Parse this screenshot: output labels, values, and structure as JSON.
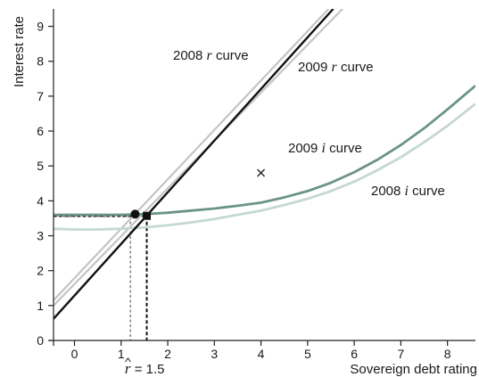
{
  "chart_data": {
    "type": "line",
    "xlabel": "Sovereign debt rating",
    "ylabel": "Interest rate",
    "xlim": [
      -0.45,
      8.6
    ],
    "ylim": [
      0,
      9.5
    ],
    "x_ticks": [
      0,
      1,
      2,
      3,
      4,
      5,
      6,
      7,
      8
    ],
    "y_ticks": [
      0,
      1,
      2,
      3,
      4,
      5,
      6,
      7,
      8,
      9
    ],
    "grid": false,
    "series": [
      {
        "name": "2008 r curve",
        "label_prefix": "2008 ",
        "label_symbol": "r",
        "label_suffix": " curve",
        "color": "#c4c4c4",
        "kind": "line",
        "x": [
          -0.45,
          5.75
        ],
        "y": [
          1.0,
          9.5
        ]
      },
      {
        "name": "2008 r curve (second line)",
        "color": "#c4c4c4",
        "kind": "line",
        "x": [
          -0.45,
          5.45
        ],
        "y": [
          1.15,
          9.5
        ]
      },
      {
        "name": "2009 r curve",
        "label_prefix": "2009 ",
        "label_symbol": "r",
        "label_suffix": " curve",
        "color": "#111111",
        "kind": "line",
        "x": [
          -0.45,
          5.55
        ],
        "y": [
          0.62,
          9.5
        ]
      },
      {
        "name": "2009 i curve",
        "label_prefix": "2009 ",
        "label_symbol": "i",
        "label_suffix": " curve",
        "color": "#6b9488",
        "kind": "curve",
        "x": [
          -0.45,
          0.5,
          1.0,
          1.5,
          2.0,
          2.5,
          3.0,
          3.5,
          4.0,
          4.5,
          5.0,
          5.5,
          6.0,
          6.5,
          7.0,
          7.5,
          8.0,
          8.6
        ],
        "y": [
          3.6,
          3.6,
          3.6,
          3.62,
          3.66,
          3.72,
          3.78,
          3.86,
          3.95,
          4.1,
          4.28,
          4.52,
          4.82,
          5.18,
          5.6,
          6.08,
          6.62,
          7.3
        ]
      },
      {
        "name": "2008 i curve",
        "label_prefix": "2008 ",
        "label_symbol": "i",
        "label_suffix": " curve",
        "color": "#c6d8d2",
        "kind": "curve",
        "x": [
          -0.45,
          0.0,
          0.5,
          1.0,
          1.5,
          2.0,
          2.5,
          3.0,
          3.5,
          4.0,
          4.5,
          5.0,
          5.5,
          6.0,
          6.5,
          7.0,
          7.5,
          8.0,
          8.6
        ],
        "y": [
          3.2,
          3.18,
          3.18,
          3.2,
          3.24,
          3.3,
          3.38,
          3.48,
          3.6,
          3.72,
          3.88,
          4.06,
          4.28,
          4.55,
          4.88,
          5.25,
          5.68,
          6.15,
          6.78
        ]
      }
    ],
    "markers": [
      {
        "label": "circle equilibrium",
        "shape": "circle",
        "x": 1.3,
        "y": 3.62
      },
      {
        "label": "square equilibrium",
        "shape": "square",
        "x": 1.55,
        "y": 3.57
      },
      {
        "label": "cross point",
        "shape": "x",
        "x": 4.0,
        "y": 4.8
      }
    ],
    "guide_lines": [
      {
        "label": "dotted guide at 1.2",
        "x": 1.2,
        "y": 3.55,
        "color": "#8a8a8a"
      },
      {
        "label": "dashed guide at 1.5",
        "x": 1.55,
        "y": 3.57,
        "color": "#111111"
      }
    ],
    "rhat_annotation": {
      "symbol": "r",
      "text": " = 1.5",
      "x": 1.5
    }
  }
}
